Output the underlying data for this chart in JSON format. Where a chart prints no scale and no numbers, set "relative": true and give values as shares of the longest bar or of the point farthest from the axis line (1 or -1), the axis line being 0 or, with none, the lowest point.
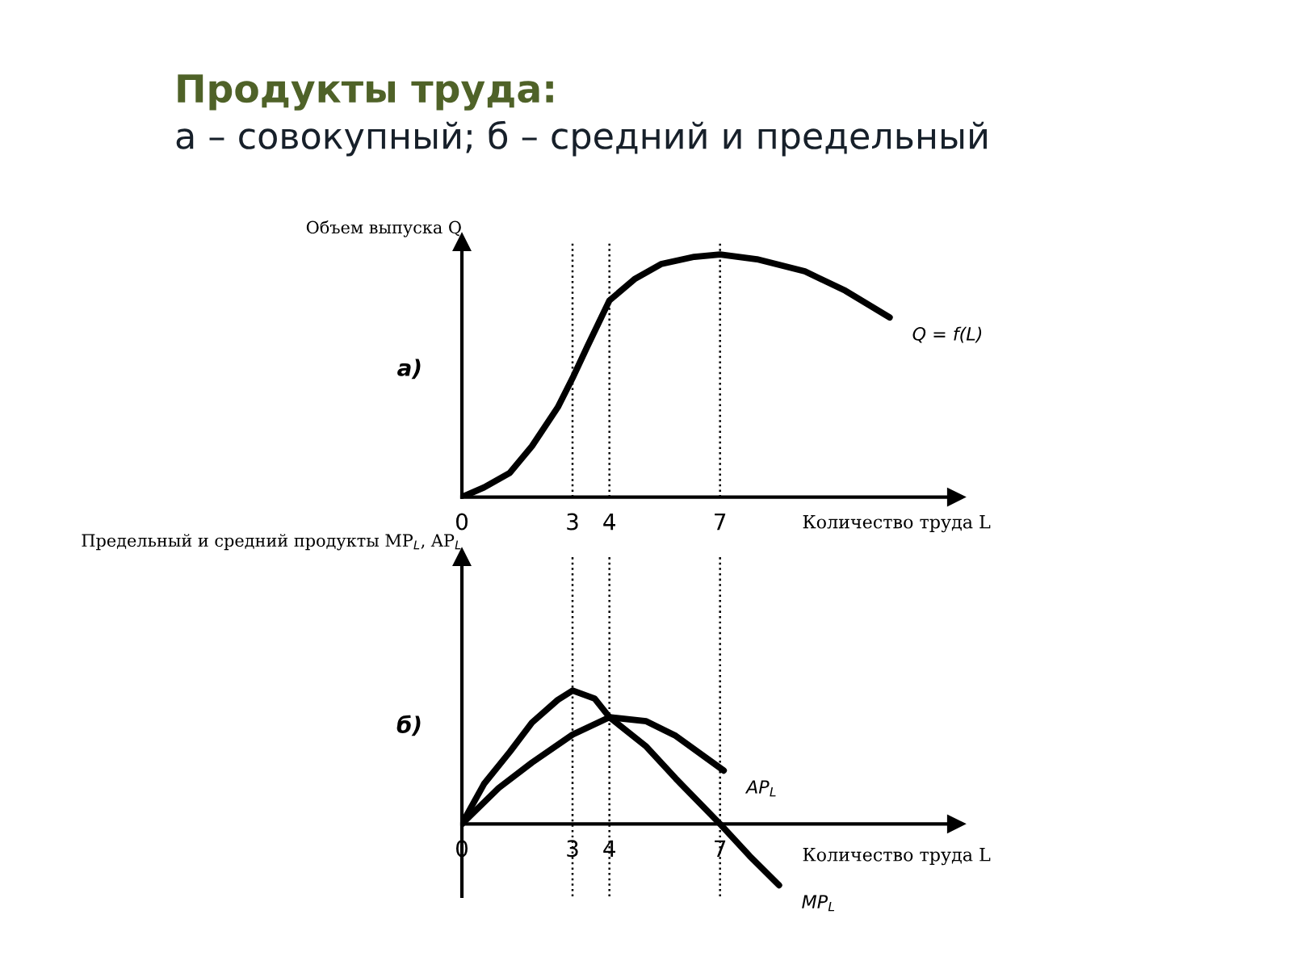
{
  "chart_data": [
    {
      "type": "line",
      "title": "Продукты труда:",
      "subtitle": "а – совокупный; б – средний и предельный",
      "ylabel": "Объем выпуска Q",
      "xlabel": "Количество труда L",
      "annotations": [
        "а)"
      ],
      "relative": true,
      "tick_labels": "x",
      "xlim": [
        0,
        13.4
      ],
      "xticks": [
        0,
        3,
        4,
        7
      ],
      "grid": false,
      "ref_lines": [
        {
          "axis": "x",
          "value": 3,
          "line_style": "dotted",
          "color": "#000000"
        },
        {
          "axis": "x",
          "value": 4,
          "line_style": "dotted",
          "color": "#000000"
        },
        {
          "axis": "x",
          "value": 7,
          "line_style": "dotted",
          "color": "#000000"
        }
      ],
      "series": [
        {
          "name": "Q = f(L)",
          "color": "#000000",
          "x": [
            0,
            0.6,
            1.3,
            1.9,
            2.6,
            3,
            3.4,
            4,
            4.7,
            5.4,
            6.3,
            7,
            8,
            9.3,
            10.4,
            11.6
          ],
          "values": [
            0,
            0.04,
            0.1,
            0.21,
            0.37,
            0.49,
            0.62,
            0.81,
            0.9,
            0.96,
            0.99,
            1,
            0.98,
            0.93,
            0.85,
            0.74
          ]
        }
      ]
    },
    {
      "type": "line",
      "ylabel": "Предельный и средний продукты MP$_{L}$, AP$_{L}$",
      "xlabel": "Количество труда L",
      "annotations": [
        "б)"
      ],
      "relative": true,
      "tick_labels": "x",
      "xlim": [
        0,
        13.4
      ],
      "xticks": [
        0,
        3,
        4,
        7
      ],
      "grid": false,
      "ref_lines": [
        {
          "axis": "x",
          "value": 3,
          "line_style": "dotted",
          "color": "#000000"
        },
        {
          "axis": "x",
          "value": 4,
          "line_style": "dotted",
          "color": "#000000"
        },
        {
          "axis": "x",
          "value": 7,
          "line_style": "dotted",
          "color": "#000000"
        }
      ],
      "series": [
        {
          "name": "MP$_{L}$",
          "color": "#000000",
          "x": [
            0,
            0.6,
            1.3,
            1.9,
            2.6,
            3,
            3.6,
            4,
            5,
            5.8,
            7,
            7.8,
            8.6
          ],
          "values": [
            0,
            0.3,
            0.54,
            0.76,
            0.93,
            1,
            0.94,
            0.8,
            0.58,
            0.34,
            0,
            -0.24,
            -0.46
          ]
        },
        {
          "name": "AP$_{L}$",
          "color": "#000000",
          "x": [
            0,
            1,
            1.9,
            3,
            4,
            5,
            5.8,
            7.1
          ],
          "values": [
            0,
            0.27,
            0.46,
            0.67,
            0.8,
            0.77,
            0.66,
            0.4
          ]
        }
      ]
    }
  ]
}
